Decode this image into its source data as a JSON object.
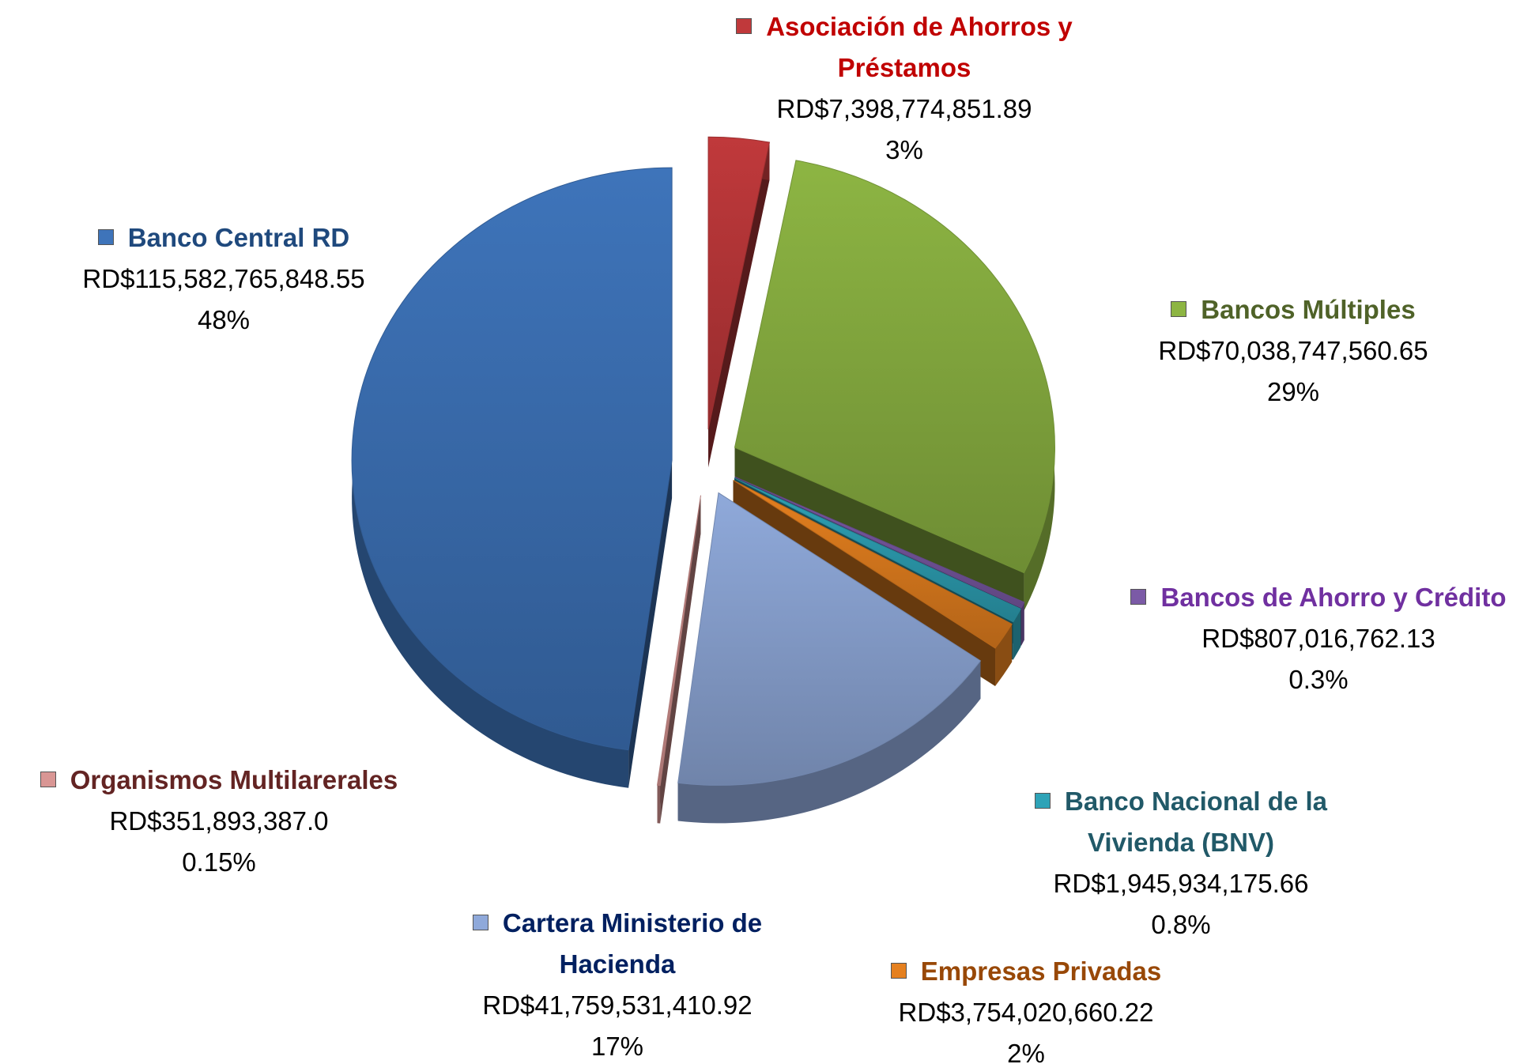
{
  "chart_data": {
    "type": "pie",
    "categories": [
      "Asociación de Ahorros y Préstamos",
      "Bancos Múltiples",
      "Bancos de Ahorro y Crédito",
      "Banco Nacional de la Vivienda (BNV)",
      "Empresas Privadas",
      "Cartera Ministerio de Hacienda",
      "Organismos Multilarerales",
      "Banco Central RD"
    ],
    "values": [
      7398774851.89,
      70038747560.65,
      807016762.13,
      1945934175.66,
      3754020660.22,
      41759531410.92,
      351893387.0,
      115582765848.55
    ],
    "value_labels": [
      "RD$7,398,774,851.89",
      "RD$70,038,747,560.65",
      "RD$807,016,762.13",
      "RD$1,945,934,175.66",
      "RD$3,754,020,660.22",
      "RD$41,759,531,410.92",
      "RD$351,893,387.0",
      "RD$115,582,765,848.55"
    ],
    "percents": [
      3,
      29,
      0.3,
      0.8,
      2,
      17,
      0.15,
      48
    ],
    "percent_labels": [
      "3%",
      "29%",
      "0.3%",
      "0.8%",
      "2%",
      "17%",
      "0.15%",
      "48%"
    ],
    "colors": [
      "#c0393b",
      "#8db543",
      "#7b5aa6",
      "#2ea3b7",
      "#e5801f",
      "#8fa9da",
      "#d99694",
      "#3e74ba"
    ],
    "label_colors": [
      "#c00000",
      "#4f6228",
      "#7030a0",
      "#215968",
      "#984807",
      "#002060",
      "#632423",
      "#1f497d"
    ]
  }
}
